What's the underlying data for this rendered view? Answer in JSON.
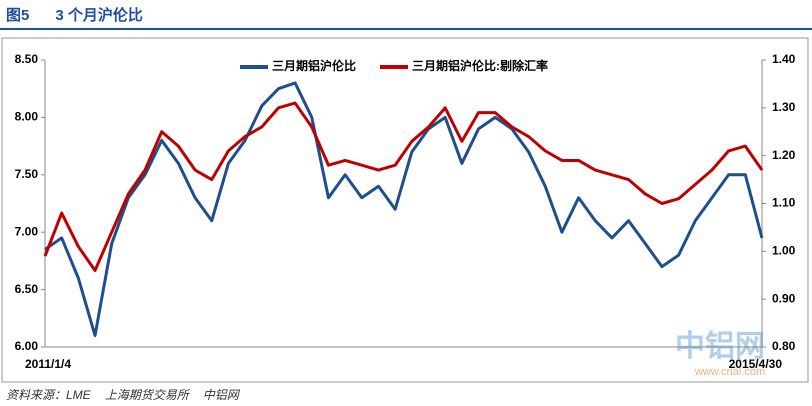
{
  "header": {
    "figure": "图5",
    "title": "3 个月沪伦比"
  },
  "footer": {
    "source": [
      "资料来源：LME",
      "上海期货交易所",
      "中铝网"
    ]
  },
  "watermark": {
    "logo": "中铝网",
    "url": "www.cnal.com"
  },
  "chart_data": {
    "type": "line",
    "categories": [
      "2011/1/4",
      null,
      null,
      null,
      null,
      null,
      null,
      null,
      null,
      null,
      null,
      null,
      null,
      null,
      null,
      null,
      null,
      null,
      null,
      null,
      null,
      null,
      null,
      null,
      null,
      null,
      null,
      null,
      null,
      null,
      null,
      null,
      null,
      null,
      null,
      null,
      null,
      null,
      null,
      null,
      null,
      null,
      null,
      "2015/4/30"
    ],
    "series": [
      {
        "name": "三月期铝沪伦比",
        "color": "#1f4e8c",
        "values": [
          6.85,
          6.95,
          6.6,
          6.1,
          6.9,
          7.3,
          7.5,
          7.8,
          7.6,
          7.3,
          7.1,
          7.6,
          7.8,
          8.1,
          8.25,
          8.3,
          8.0,
          7.3,
          7.5,
          7.3,
          7.4,
          7.2,
          7.7,
          7.9,
          8.0,
          7.6,
          7.9,
          8.0,
          7.9,
          7.7,
          7.4,
          7.0,
          7.3,
          7.1,
          6.95,
          7.1,
          6.9,
          6.7,
          6.8,
          7.1,
          7.3,
          7.5,
          7.5,
          6.95
        ]
      },
      {
        "name": "三月期铝沪伦比:剔除汇率",
        "color": "#c00000",
        "axis": "y2",
        "values": [
          0.99,
          1.08,
          1.01,
          0.96,
          1.04,
          1.12,
          1.17,
          1.25,
          1.22,
          1.17,
          1.15,
          1.21,
          1.24,
          1.26,
          1.3,
          1.31,
          1.26,
          1.18,
          1.19,
          1.18,
          1.17,
          1.18,
          1.23,
          1.26,
          1.3,
          1.23,
          1.29,
          1.29,
          1.26,
          1.24,
          1.21,
          1.19,
          1.19,
          1.17,
          1.16,
          1.15,
          1.12,
          1.1,
          1.11,
          1.14,
          1.17,
          1.21,
          1.22,
          1.17
        ]
      }
    ],
    "ylim": [
      6.0,
      8.5
    ],
    "yticks": [
      {
        "value": 6.0,
        "label": "6.00"
      },
      {
        "value": 6.5,
        "label": "6.50"
      },
      {
        "value": 7.0,
        "label": "7.00"
      },
      {
        "value": 7.5,
        "label": "7.50"
      },
      {
        "value": 8.0,
        "label": "8.00"
      },
      {
        "value": 8.5,
        "label": "8.50"
      }
    ],
    "y2lim": [
      0.8,
      1.4
    ],
    "y2ticks": [
      {
        "value": 0.8,
        "label": "0.80"
      },
      {
        "value": 0.9,
        "label": "0.90"
      },
      {
        "value": 1.0,
        "label": "1.00"
      },
      {
        "value": 1.1,
        "label": "1.10"
      },
      {
        "value": 1.2,
        "label": "1.20"
      },
      {
        "value": 1.3,
        "label": "1.30"
      },
      {
        "value": 1.4,
        "label": "1.40"
      }
    ],
    "legend": "top"
  }
}
